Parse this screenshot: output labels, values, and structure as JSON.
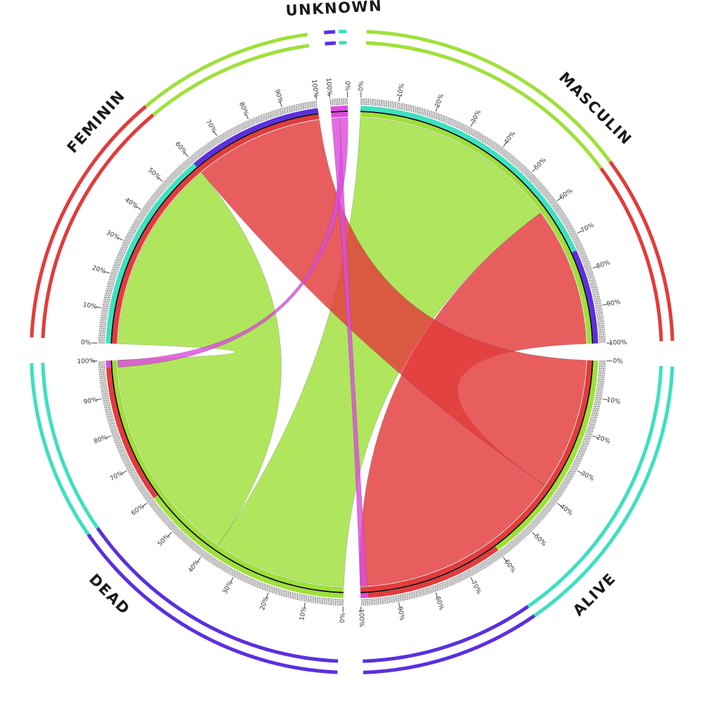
{
  "chart_data": {
    "type": "chord",
    "colors": {
      "masculin_flow": "#9fe03a",
      "feminin_flow": "#e33b3b",
      "unknown_flow": "#de4bde",
      "alive_band": "#3de0c0",
      "dead_band": "#5b2fe0"
    },
    "groups": [
      {
        "id": "masculin",
        "label": "MASCULIN",
        "start_deg": 2,
        "end_deg": 88,
        "origin": "start",
        "color": "#9fe03a",
        "outer_track": [
          {
            "frac": 0.6,
            "color": "#9fe03a"
          },
          {
            "frac": 0.4,
            "color": "#e33b3b"
          },
          {
            "frac": 0.02,
            "color": "#de4bde"
          }
        ],
        "bands": [
          {
            "frac": 0.74,
            "color": "#3de0c0"
          },
          {
            "frac": 0.26,
            "color": "#5b2fe0"
          }
        ],
        "ticks": [
          "0%",
          "10%",
          "20%",
          "30%",
          "40%",
          "50%",
          "60%",
          "70%",
          "80%",
          "90%",
          "100%"
        ]
      },
      {
        "id": "alive",
        "label": "ALIVE",
        "start_deg": 92,
        "end_deg": 178,
        "origin": "start",
        "color": "#e33b3b",
        "outer_track": [
          {
            "frac": 0.62,
            "color": "#3de0c0"
          },
          {
            "frac": 0.38,
            "color": "#5b2fe0"
          }
        ],
        "bands": [
          {
            "frac": 0.6,
            "color": "#9fe03a"
          },
          {
            "frac": 0.38,
            "color": "#e33b3b"
          },
          {
            "frac": 0.02,
            "color": "#de4bde"
          }
        ],
        "ticks": [
          "0%",
          "10%",
          "20%",
          "30%",
          "40%",
          "50%",
          "60%",
          "70%",
          "80%",
          "90%",
          "100%"
        ]
      },
      {
        "id": "dead",
        "label": "DEAD",
        "start_deg": 182,
        "end_deg": 268,
        "origin": "start",
        "color": "#9fe03a",
        "outer_track": [
          {
            "frac": 0.62,
            "color": "#5b2fe0"
          },
          {
            "frac": 0.38,
            "color": "#3de0c0"
          }
        ],
        "bands": [
          {
            "frac": 0.6,
            "color": "#9fe03a"
          },
          {
            "frac": 0.38,
            "color": "#e33b3b"
          },
          {
            "frac": 0.02,
            "color": "#de4bde"
          }
        ],
        "ticks": [
          "0%",
          "10%",
          "20%",
          "30%",
          "40%",
          "50%",
          "60%",
          "70%",
          "80%",
          "90%",
          "100%"
        ]
      },
      {
        "id": "feminin",
        "label": "FEMININ",
        "start_deg": 272,
        "end_deg": 352,
        "origin": "start",
        "color": "#e33b3b",
        "outer_track": [
          {
            "frac": 0.6,
            "color": "#e33b3b"
          },
          {
            "frac": 0.4,
            "color": "#9fe03a"
          },
          {
            "frac": 0.02,
            "color": "#de4bde"
          }
        ],
        "bands": [
          {
            "frac": 0.6,
            "color": "#3de0c0"
          },
          {
            "frac": 0.4,
            "color": "#5b2fe0"
          }
        ],
        "ticks": [
          "0%",
          "10%",
          "20%",
          "30%",
          "40%",
          "50%",
          "60%",
          "70%",
          "80%",
          "90%",
          "100%"
        ]
      },
      {
        "id": "unknown",
        "label": "UNKNOWN",
        "start_deg": 355,
        "end_deg": 359,
        "origin": "end",
        "color": "#de4bde",
        "outer_track": [
          {
            "frac": 0.5,
            "color": "#3de0c0"
          },
          {
            "frac": 0.5,
            "color": "#5b2fe0"
          }
        ],
        "bands": [
          {
            "frac": 0.5,
            "color": "#de4bde"
          },
          {
            "frac": 0.5,
            "color": "#de4bde"
          }
        ],
        "ticks": [
          "0%",
          "100%"
        ]
      }
    ],
    "flows": [
      {
        "source": "masculin",
        "target": "dead",
        "src_range": [
          0.0,
          0.6
        ],
        "tgt_range": [
          0.0,
          0.38
        ],
        "color": "#9fe03a"
      },
      {
        "source": "masculin",
        "target": "alive",
        "src_range": [
          0.6,
          1.0
        ],
        "tgt_range": [
          0.38,
          1.0
        ],
        "color": "#e33b3b"
      },
      {
        "source": "feminin",
        "target": "alive",
        "src_range": [
          0.6,
          1.0
        ],
        "tgt_range": [
          0.0,
          0.38
        ],
        "color": "#e33b3b"
      },
      {
        "source": "feminin",
        "target": "dead",
        "src_range": [
          0.0,
          0.6
        ],
        "tgt_range": [
          0.38,
          1.0
        ],
        "color": "#9fe03a"
      },
      {
        "source": "unknown",
        "target": "dead",
        "src_range": [
          0.0,
          0.5
        ],
        "tgt_range": [
          0.98,
          1.0
        ],
        "color": "#de4bde"
      },
      {
        "source": "unknown",
        "target": "alive",
        "src_range": [
          0.5,
          1.0
        ],
        "tgt_range": [
          0.98,
          1.0
        ],
        "color": "#de4bde"
      }
    ]
  }
}
